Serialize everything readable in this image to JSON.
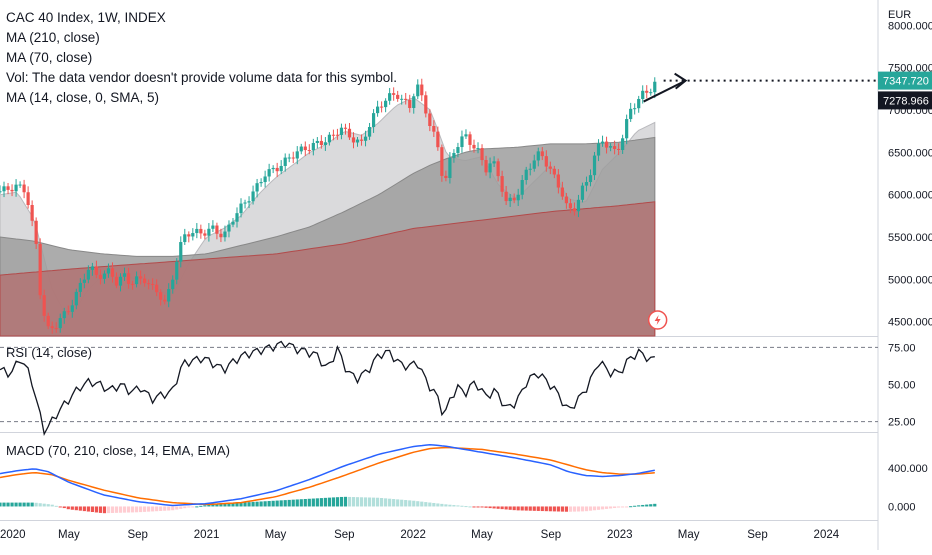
{
  "legend": {
    "title": "CAC 40 Index, 1W, INDEX",
    "ma_long": "MA (210, close)",
    "ma_mid": "MA (70, close)",
    "vol": "Vol: The data vendor doesn't provide volume data for this symbol.",
    "ma_short": "MA (14, close, 0, SMA, 5)"
  },
  "rsi_label": "RSI (14, close)",
  "macd_label": "MACD (70, 210, close, 14, EMA, EMA)",
  "currency": "EUR",
  "price_badge": "7347.720",
  "ma_badge": "7278.966",
  "colors": {
    "up": "#26a69a",
    "down": "#ef5350",
    "ma_long_fill": "#b07878",
    "ma_mid_fill": "#9e9e9e",
    "ma_short_fill": "#d6d6d8",
    "macd_line": "#2962ff",
    "signal_line": "#ff6d00"
  },
  "chart_data": [
    {
      "type": "candlestick",
      "title": "CAC 40 Index, 1W, INDEX",
      "y_unit": "EUR",
      "y_ticks": [
        4500,
        5000,
        5500,
        6000,
        6500,
        7000,
        7500,
        8000
      ],
      "y_tick_labels": [
        "4500.000",
        "5000.000",
        "5500.000",
        "6000.000",
        "6500.000",
        "7000.000",
        "7500.000",
        "8000.000"
      ],
      "ylim": [
        4330,
        8300
      ],
      "x_ticks": [
        "2020",
        "May",
        "Sep",
        "2021",
        "May",
        "Sep",
        "2022",
        "May",
        "Sep",
        "2023",
        "May",
        "Sep",
        "2024"
      ],
      "x_tick_months": [
        0,
        4,
        8,
        12,
        16,
        20,
        24,
        28,
        32,
        36,
        40,
        44,
        48
      ],
      "xlim_months": [
        0,
        51
      ],
      "last_month": 38.2,
      "closes_key": [
        [
          0,
          6040
        ],
        [
          1,
          6100
        ],
        [
          1.5,
          6050
        ],
        [
          2.1,
          5400
        ],
        [
          2.4,
          4700
        ],
        [
          2.8,
          4400
        ],
        [
          3.2,
          4450
        ],
        [
          3.6,
          4550
        ],
        [
          4.0,
          4650
        ],
        [
          4.4,
          4800
        ],
        [
          4.8,
          5000
        ],
        [
          5.2,
          5150
        ],
        [
          5.6,
          5050
        ],
        [
          6.0,
          5050
        ],
        [
          6.4,
          5100
        ],
        [
          6.8,
          4950
        ],
        [
          7.2,
          5050
        ],
        [
          7.6,
          4950
        ],
        [
          8.0,
          5000
        ],
        [
          8.4,
          5000
        ],
        [
          8.8,
          4900
        ],
        [
          9.2,
          4850
        ],
        [
          9.6,
          4700
        ],
        [
          10.0,
          5000
        ],
        [
          10.4,
          5350
        ],
        [
          10.8,
          5550
        ],
        [
          11.2,
          5550
        ],
        [
          11.8,
          5550
        ],
        [
          12.4,
          5600
        ],
        [
          13.0,
          5500
        ],
        [
          13.6,
          5750
        ],
        [
          14.2,
          5900
        ],
        [
          14.8,
          6050
        ],
        [
          15.4,
          6250
        ],
        [
          16.0,
          6300
        ],
        [
          16.6,
          6400
        ],
        [
          17.2,
          6500
        ],
        [
          17.8,
          6550
        ],
        [
          18.4,
          6600
        ],
        [
          19.0,
          6650
        ],
        [
          19.4,
          6700
        ],
        [
          19.8,
          6800
        ],
        [
          20.2,
          6700
        ],
        [
          20.6,
          6650
        ],
        [
          21.0,
          6600
        ],
        [
          21.4,
          6800
        ],
        [
          22.0,
          7050
        ],
        [
          22.6,
          7150
        ],
        [
          23.0,
          7200
        ],
        [
          23.4,
          7100
        ],
        [
          23.8,
          7050
        ],
        [
          24.2,
          7300
        ],
        [
          24.6,
          7100
        ],
        [
          25.0,
          6800
        ],
        [
          25.4,
          6600
        ],
        [
          25.8,
          6100
        ],
        [
          26.2,
          6450
        ],
        [
          26.6,
          6600
        ],
        [
          27.0,
          6700
        ],
        [
          27.4,
          6600
        ],
        [
          27.8,
          6500
        ],
        [
          28.2,
          6300
        ],
        [
          28.6,
          6400
        ],
        [
          29.0,
          6200
        ],
        [
          29.4,
          5900
        ],
        [
          29.8,
          5950
        ],
        [
          30.2,
          6050
        ],
        [
          30.6,
          6300
        ],
        [
          31.0,
          6400
        ],
        [
          31.4,
          6500
        ],
        [
          31.8,
          6350
        ],
        [
          32.2,
          6200
        ],
        [
          32.6,
          6050
        ],
        [
          33.0,
          5800
        ],
        [
          33.4,
          5850
        ],
        [
          33.8,
          6050
        ],
        [
          34.2,
          6200
        ],
        [
          34.6,
          6500
        ],
        [
          35.0,
          6650
        ],
        [
          35.4,
          6550
        ],
        [
          35.8,
          6500
        ],
        [
          36.2,
          6700
        ],
        [
          36.6,
          7000
        ],
        [
          37.0,
          7100
        ],
        [
          37.4,
          7200
        ],
        [
          37.8,
          7250
        ],
        [
          38.2,
          7348
        ]
      ],
      "ma_short_key": [
        [
          0,
          6000
        ],
        [
          1,
          6030
        ],
        [
          2,
          5700
        ],
        [
          3,
          4900
        ],
        [
          4,
          4500
        ],
        [
          5,
          4850
        ],
        [
          6,
          5050
        ],
        [
          7,
          5050
        ],
        [
          8,
          5000
        ],
        [
          9,
          4900
        ],
        [
          10,
          4800
        ],
        [
          11,
          5200
        ],
        [
          12,
          5500
        ],
        [
          13,
          5600
        ],
        [
          14,
          5750
        ],
        [
          15,
          6000
        ],
        [
          16,
          6200
        ],
        [
          17,
          6350
        ],
        [
          18,
          6500
        ],
        [
          19,
          6600
        ],
        [
          20,
          6750
        ],
        [
          21,
          6700
        ],
        [
          22,
          6850
        ],
        [
          23,
          7050
        ],
        [
          24,
          7150
        ],
        [
          25,
          7000
        ],
        [
          26,
          6450
        ],
        [
          27,
          6400
        ],
        [
          28,
          6450
        ],
        [
          29,
          6100
        ],
        [
          30,
          5950
        ],
        [
          31,
          6150
        ],
        [
          32,
          6350
        ],
        [
          33,
          5950
        ],
        [
          34,
          5900
        ],
        [
          35,
          6300
        ],
        [
          36,
          6500
        ],
        [
          37,
          6750
        ],
        [
          38.2,
          6870
        ]
      ],
      "ma_mid_key": [
        [
          0,
          5500
        ],
        [
          2,
          5450
        ],
        [
          4,
          5350
        ],
        [
          6,
          5300
        ],
        [
          8,
          5270
        ],
        [
          10,
          5270
        ],
        [
          12,
          5300
        ],
        [
          14,
          5400
        ],
        [
          16,
          5500
        ],
        [
          18,
          5620
        ],
        [
          20,
          5800
        ],
        [
          22,
          6000
        ],
        [
          24,
          6250
        ],
        [
          25,
          6350
        ],
        [
          26,
          6430
        ],
        [
          27,
          6500
        ],
        [
          28,
          6540
        ],
        [
          30,
          6560
        ],
        [
          32,
          6600
        ],
        [
          34,
          6600
        ],
        [
          36,
          6620
        ],
        [
          38.2,
          6680
        ]
      ],
      "ma_long_key": [
        [
          0,
          5050
        ],
        [
          4,
          5120
        ],
        [
          8,
          5180
        ],
        [
          12,
          5240
        ],
        [
          16,
          5300
        ],
        [
          20,
          5420
        ],
        [
          24,
          5600
        ],
        [
          28,
          5700
        ],
        [
          32,
          5800
        ],
        [
          36,
          5870
        ],
        [
          38.2,
          5920
        ]
      ],
      "price_target": 7347.72,
      "ma_value": 7278.966
    },
    {
      "type": "line",
      "title": "RSI (14, close)",
      "y_ticks": [
        25,
        50,
        75
      ],
      "y_tick_labels": [
        "25.00",
        "50.00",
        "75.00"
      ],
      "ylim": [
        18,
        82
      ],
      "bands": [
        25,
        75
      ],
      "values_key": [
        [
          0,
          60
        ],
        [
          0.6,
          57
        ],
        [
          1.2,
          68
        ],
        [
          1.8,
          55
        ],
        [
          2.3,
          30
        ],
        [
          2.6,
          18
        ],
        [
          3.0,
          25
        ],
        [
          3.4,
          32
        ],
        [
          4.0,
          40
        ],
        [
          4.6,
          48
        ],
        [
          5.2,
          52
        ],
        [
          5.8,
          50
        ],
        [
          6.4,
          46
        ],
        [
          7.0,
          50
        ],
        [
          7.6,
          45
        ],
        [
          8.2,
          48
        ],
        [
          8.8,
          40
        ],
        [
          9.4,
          43
        ],
        [
          10.0,
          45
        ],
        [
          10.6,
          64
        ],
        [
          11.2,
          66
        ],
        [
          11.8,
          68
        ],
        [
          12.4,
          64
        ],
        [
          13.0,
          60
        ],
        [
          13.6,
          66
        ],
        [
          14.2,
          70
        ],
        [
          14.8,
          72
        ],
        [
          15.4,
          74
        ],
        [
          16.0,
          76
        ],
        [
          16.6,
          78
        ],
        [
          17.2,
          74
        ],
        [
          17.8,
          72
        ],
        [
          18.4,
          70
        ],
        [
          19.0,
          60
        ],
        [
          19.6,
          74
        ],
        [
          20.2,
          58
        ],
        [
          20.8,
          54
        ],
        [
          21.4,
          60
        ],
        [
          22.0,
          70
        ],
        [
          22.6,
          72
        ],
        [
          23.2,
          64
        ],
        [
          23.8,
          62
        ],
        [
          24.2,
          66
        ],
        [
          24.6,
          56
        ],
        [
          25.0,
          48
        ],
        [
          25.4,
          42
        ],
        [
          25.8,
          28
        ],
        [
          26.2,
          42
        ],
        [
          26.6,
          48
        ],
        [
          27.0,
          44
        ],
        [
          27.6,
          52
        ],
        [
          28.2,
          42
        ],
        [
          28.8,
          46
        ],
        [
          29.4,
          34
        ],
        [
          30.0,
          38
        ],
        [
          30.6,
          52
        ],
        [
          31.2,
          58
        ],
        [
          31.8,
          52
        ],
        [
          32.4,
          44
        ],
        [
          33.0,
          32
        ],
        [
          33.6,
          40
        ],
        [
          34.2,
          50
        ],
        [
          34.8,
          66
        ],
        [
          35.4,
          58
        ],
        [
          36.0,
          58
        ],
        [
          36.6,
          68
        ],
        [
          37.2,
          72
        ],
        [
          37.8,
          66
        ],
        [
          38.2,
          70
        ]
      ]
    },
    {
      "type": "line",
      "title": "MACD (70, 210, close, 14, EMA, EMA)",
      "y_ticks": [
        0,
        400
      ],
      "y_tick_labels": [
        "0.000",
        "400.000"
      ],
      "ylim": [
        -140,
        760
      ],
      "macd_key": [
        [
          0,
          340
        ],
        [
          1,
          370
        ],
        [
          2,
          390
        ],
        [
          2.8,
          360
        ],
        [
          4,
          250
        ],
        [
          6,
          120
        ],
        [
          8,
          50
        ],
        [
          10,
          10
        ],
        [
          12,
          30
        ],
        [
          14,
          80
        ],
        [
          16,
          160
        ],
        [
          18,
          280
        ],
        [
          20,
          420
        ],
        [
          22,
          540
        ],
        [
          24,
          620
        ],
        [
          25,
          640
        ],
        [
          26,
          620
        ],
        [
          28,
          560
        ],
        [
          30,
          500
        ],
        [
          32,
          430
        ],
        [
          33,
          360
        ],
        [
          34,
          320
        ],
        [
          35,
          310
        ],
        [
          36,
          320
        ],
        [
          37,
          340
        ],
        [
          38.2,
          380
        ]
      ],
      "signal_key": [
        [
          0,
          300
        ],
        [
          1,
          330
        ],
        [
          2,
          350
        ],
        [
          3,
          330
        ],
        [
          4,
          270
        ],
        [
          6,
          170
        ],
        [
          8,
          90
        ],
        [
          10,
          40
        ],
        [
          12,
          20
        ],
        [
          14,
          40
        ],
        [
          16,
          100
        ],
        [
          18,
          200
        ],
        [
          20,
          320
        ],
        [
          22,
          450
        ],
        [
          24,
          560
        ],
        [
          25,
          600
        ],
        [
          26,
          610
        ],
        [
          28,
          590
        ],
        [
          30,
          540
        ],
        [
          32,
          480
        ],
        [
          33,
          430
        ],
        [
          34,
          380
        ],
        [
          35,
          350
        ],
        [
          36,
          335
        ],
        [
          37,
          335
        ],
        [
          38.2,
          350
        ]
      ],
      "hist_key": [
        [
          0,
          40
        ],
        [
          1,
          40
        ],
        [
          2,
          40
        ],
        [
          3,
          20
        ],
        [
          4,
          -30
        ],
        [
          6,
          -70
        ],
        [
          8,
          -60
        ],
        [
          10,
          -40
        ],
        [
          11,
          -10
        ],
        [
          12,
          15
        ],
        [
          14,
          40
        ],
        [
          16,
          60
        ],
        [
          18,
          80
        ],
        [
          20,
          100
        ],
        [
          22,
          90
        ],
        [
          24,
          60
        ],
        [
          25,
          40
        ],
        [
          26,
          20
        ],
        [
          28,
          -10
        ],
        [
          30,
          -40
        ],
        [
          32,
          -50
        ],
        [
          33,
          -55
        ],
        [
          34,
          -50
        ],
        [
          35,
          -30
        ],
        [
          36,
          -10
        ],
        [
          37,
          10
        ],
        [
          38.2,
          30
        ]
      ]
    }
  ]
}
